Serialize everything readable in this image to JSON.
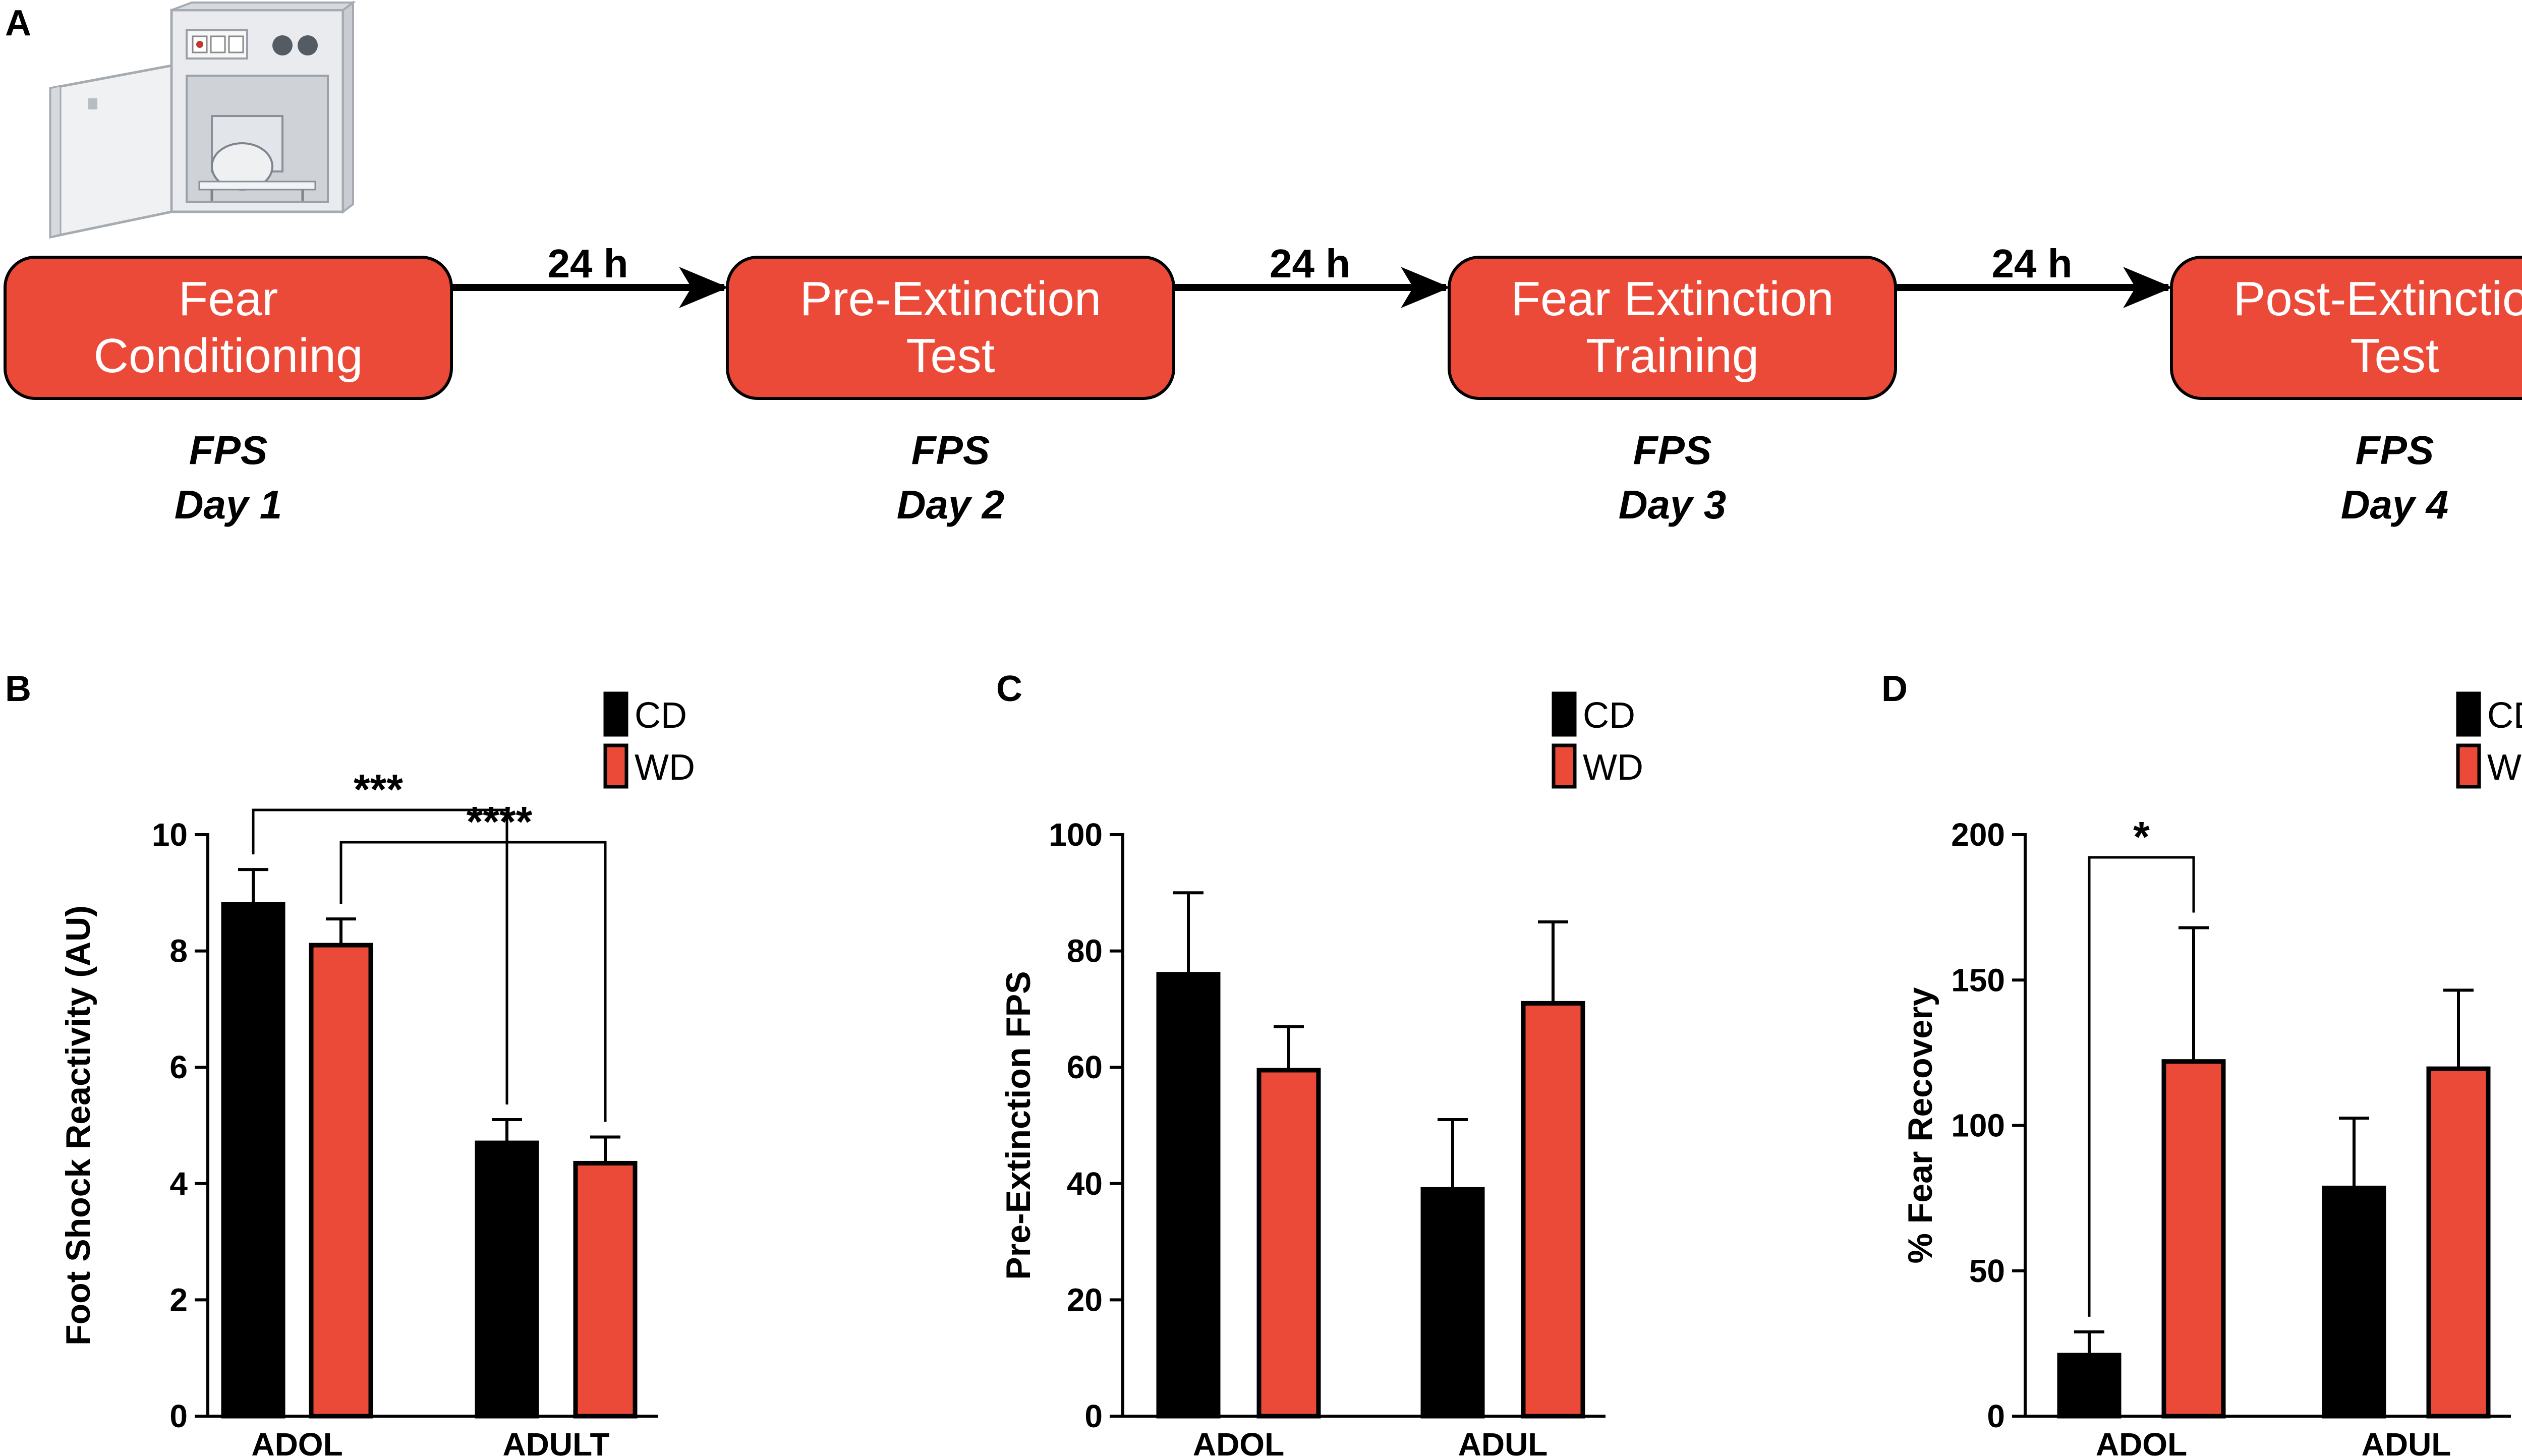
{
  "colors": {
    "cd": "#000000",
    "wd": "#ec4a39",
    "box_fill": "#ec4a39",
    "ink": "#000000"
  },
  "panel_a": {
    "letter": "A",
    "apparatus_icon": "startle-chamber-illustration",
    "boxes": [
      {
        "line1": "Fear",
        "line2": "Conditioning",
        "fps": "FPS",
        "day": "Day 1"
      },
      {
        "line1": "Pre-Extinction",
        "line2": "Test",
        "fps": "FPS",
        "day": "Day 2"
      },
      {
        "line1": "Fear Extinction",
        "line2": "Training",
        "fps": "FPS",
        "day": "Day 3"
      },
      {
        "line1": "Post-Extinction",
        "line2": "Test",
        "fps": "FPS",
        "day": "Day 4"
      }
    ],
    "arrows": [
      "24 h",
      "24 h",
      "24 h"
    ]
  },
  "chart_data": [
    {
      "type": "bar",
      "letter": "B",
      "title": "",
      "xlabel": "",
      "ylabel": "Foot Shock Reactivity (AU)",
      "ylim": [
        0,
        10
      ],
      "yticks": [
        0,
        2,
        4,
        6,
        8,
        10
      ],
      "categories": [
        "ADOL",
        "ADULT"
      ],
      "legend": {
        "placement": "top-right",
        "entries": [
          "CD",
          "WD"
        ]
      },
      "series": [
        {
          "name": "CD",
          "values": [
            8.8,
            4.7
          ],
          "errors": [
            0.6,
            0.4
          ]
        },
        {
          "name": "WD",
          "values": [
            8.1,
            4.35
          ],
          "errors": [
            0.45,
            0.45
          ]
        }
      ],
      "significance": [
        {
          "from": [
            0,
            0
          ],
          "to": [
            1,
            0
          ],
          "label": "***"
        },
        {
          "from": [
            0,
            1
          ],
          "to": [
            1,
            1
          ],
          "label": "****"
        }
      ]
    },
    {
      "type": "bar",
      "letter": "C",
      "title": "",
      "xlabel": "",
      "ylabel": "Pre-Extinction FPS",
      "ylim": [
        0,
        100
      ],
      "yticks": [
        0,
        20,
        40,
        60,
        80,
        100
      ],
      "categories": [
        "ADOL",
        "ADUL"
      ],
      "legend": {
        "placement": "top-right",
        "entries": [
          "CD",
          "WD"
        ]
      },
      "series": [
        {
          "name": "CD",
          "values": [
            76,
            39
          ],
          "errors": [
            14,
            12
          ]
        },
        {
          "name": "WD",
          "values": [
            59.5,
            71
          ],
          "errors": [
            7.5,
            14
          ]
        }
      ],
      "significance": []
    },
    {
      "type": "bar",
      "letter": "D",
      "title": "",
      "xlabel": "",
      "ylabel": "% Fear Recovery",
      "ylim": [
        0,
        200
      ],
      "yticks": [
        0,
        50,
        100,
        150,
        200
      ],
      "categories": [
        "ADOL",
        "ADUL"
      ],
      "legend": {
        "placement": "top-right",
        "entries": [
          "CD",
          "WD"
        ]
      },
      "series": [
        {
          "name": "CD",
          "values": [
            21,
            78.5
          ],
          "errors": [
            8,
            24
          ]
        },
        {
          "name": "WD",
          "values": [
            122,
            119.5
          ],
          "errors": [
            46,
            27
          ]
        }
      ],
      "significance": [
        {
          "from": [
            0,
            0
          ],
          "to": [
            0,
            1
          ],
          "label": "*"
        }
      ]
    }
  ]
}
